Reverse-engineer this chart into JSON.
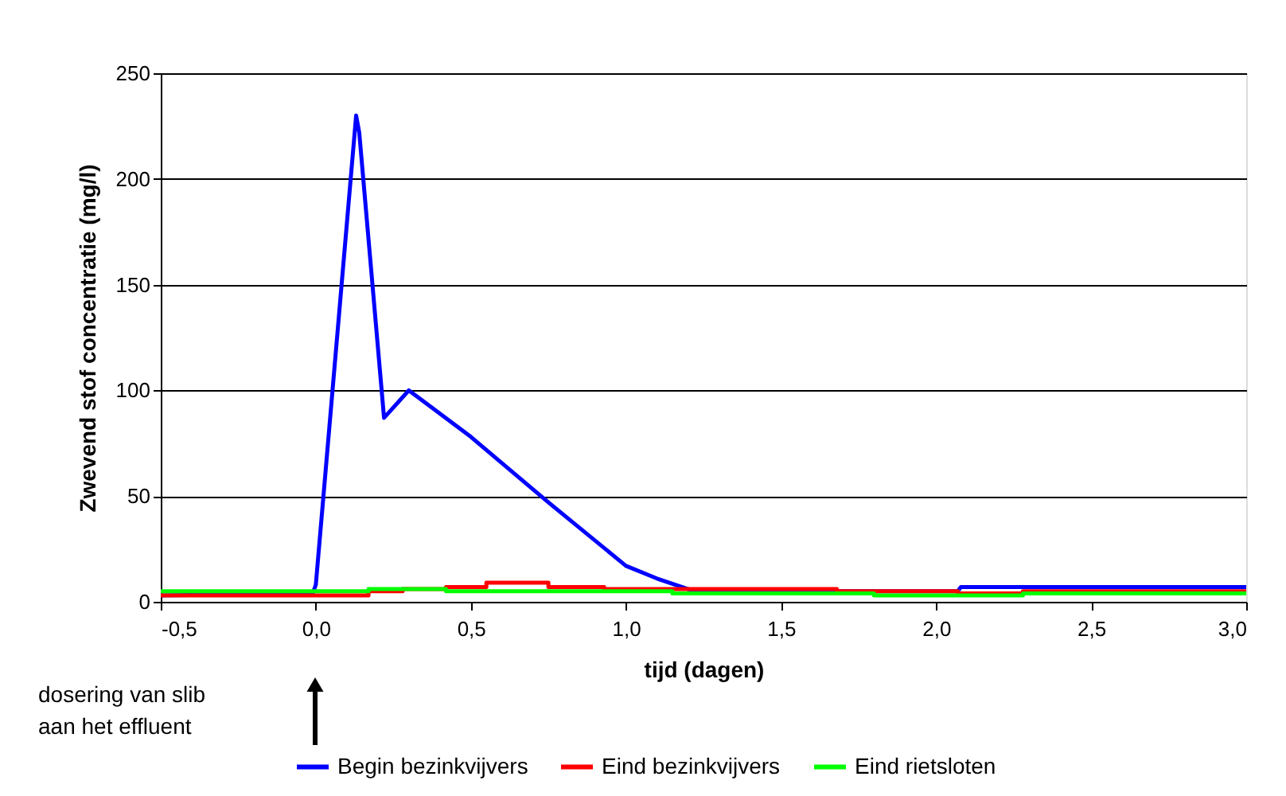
{
  "chart_data": {
    "type": "line",
    "xlabel": "tijd (dagen)",
    "ylabel": "Zwevend stof concentratie (mg/l)",
    "xlim": [
      -0.5,
      3.0
    ],
    "xticks": [
      {
        "value": -0.5,
        "label": "-0,5"
      },
      {
        "value": 0.0,
        "label": "0,0"
      },
      {
        "value": 0.5,
        "label": "0,5"
      },
      {
        "value": 1.0,
        "label": "1,0"
      },
      {
        "value": 1.5,
        "label": "1,5"
      },
      {
        "value": 2.0,
        "label": "2,0"
      },
      {
        "value": 2.5,
        "label": "2,5"
      },
      {
        "value": 3.0,
        "label": "3,0"
      }
    ],
    "ylim": [
      0,
      250
    ],
    "yticks": [
      0,
      50,
      100,
      150,
      200,
      250
    ],
    "grid": "y",
    "legend": "bottom",
    "marker": "none",
    "line_style": "solid",
    "annotations": [
      "dosering van slib\naan het effluent"
    ],
    "series": [
      {
        "name": "Begin bezinkvijvers",
        "color": "#0000ff",
        "x": [
          -0.5,
          -0.01,
          0.0,
          0.13,
          0.14,
          0.22,
          0.3,
          0.5,
          0.75,
          1.0,
          1.1,
          1.22,
          2.07,
          2.08,
          3.0
        ],
        "values": [
          3,
          4,
          8,
          230,
          222,
          87,
          100,
          78,
          47,
          17,
          11,
          5,
          5,
          7,
          7
        ]
      },
      {
        "name": "Eind bezinkvijvers",
        "color": "#ff0000",
        "type": "step",
        "x": [
          -0.5,
          -0.25,
          0.17,
          0.28,
          0.42,
          0.55,
          0.75,
          0.93,
          1.68,
          2.07,
          2.28,
          3.0
        ],
        "values": [
          3,
          3,
          5,
          6,
          7,
          9,
          7,
          6,
          5,
          4,
          5,
          5
        ]
      },
      {
        "name": "Eind rietsloten",
        "color": "#00ff00",
        "type": "step",
        "x": [
          -0.5,
          0.17,
          0.42,
          1.15,
          1.8,
          2.28,
          3.0
        ],
        "values": [
          5,
          6,
          5,
          4,
          3,
          4,
          4
        ]
      }
    ]
  }
}
